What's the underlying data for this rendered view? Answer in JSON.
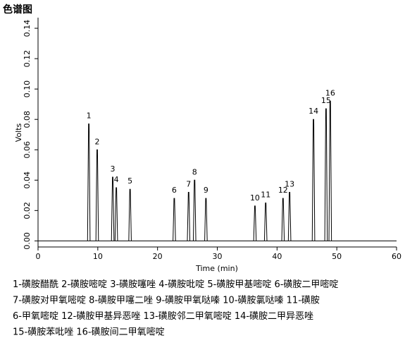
{
  "chart_data": {
    "type": "chromatogram",
    "title": "色谱图",
    "ylabel": "Volts",
    "xlabel": "Time (min)",
    "color": "#000000",
    "xlim": [
      0,
      60
    ],
    "xticks": [
      0,
      10,
      20,
      30,
      40,
      50,
      60
    ],
    "ylim": [
      -0.004,
      0.147
    ],
    "yticks": [
      {
        "value": 0,
        "label": "0.00"
      },
      {
        "value": 0.02,
        "label": "0.02"
      },
      {
        "value": 0.04,
        "label": "0.04"
      },
      {
        "value": 0.06,
        "label": "0.06"
      },
      {
        "value": 0.08,
        "label": "0.08"
      },
      {
        "value": 0.1,
        "label": "0.10"
      },
      {
        "value": 0.12,
        "label": "0.12"
      },
      {
        "value": 0.14,
        "label": "0.14"
      }
    ],
    "peak_labels": [
      "1",
      "2",
      "3",
      "4",
      "5",
      "6",
      "7",
      "8",
      "9",
      "10",
      "11",
      "12",
      "13",
      "14",
      "15",
      "16"
    ],
    "x": [
      8.5,
      9.9,
      12.5,
      13.1,
      15.4,
      22.8,
      25.2,
      26.2,
      28.1,
      36.3,
      38.1,
      41.0,
      42.1,
      46.1,
      48.2,
      48.9
    ],
    "values": [
      0.077,
      0.06,
      0.042,
      0.035,
      0.034,
      0.028,
      0.032,
      0.04,
      0.028,
      0.023,
      0.025,
      0.028,
      0.032,
      0.08,
      0.087,
      0.092
    ],
    "legend_lines": [
      "1-磺胺醋酰 2-磺胺嘧啶 3-磺胺噻唑 4-磺胺吡啶 5-磺胺甲基嘧啶 6-磺胺二甲嘧啶",
      "7-磺胺对甲氧嘧啶 8-磺胺甲噻二唑 9-磺胺甲氧哒嗪 10-磺胺氯哒嗪 11-磺胺",
      "6-甲氧嘧啶 12-磺胺甲基异恶唑 13-磺胺邻二甲氧嘧啶 14-磺胺二甲异恶唑",
      "15-磺胺苯吡唑 16-磺胺间二甲氧嘧啶"
    ]
  }
}
